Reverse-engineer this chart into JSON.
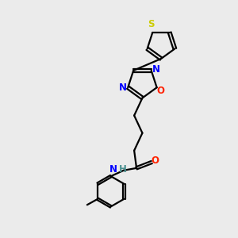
{
  "bg_color": "#ebebeb",
  "bond_color": "#000000",
  "N_color": "#0000ff",
  "O_color": "#ff2200",
  "S_color": "#cccc00",
  "H_color": "#4a9090",
  "figsize": [
    3.0,
    3.0
  ],
  "dpi": 100,
  "lw": 1.6,
  "fs": 8.5,
  "xlim": [
    0,
    10
  ],
  "ylim": [
    0,
    10
  ]
}
